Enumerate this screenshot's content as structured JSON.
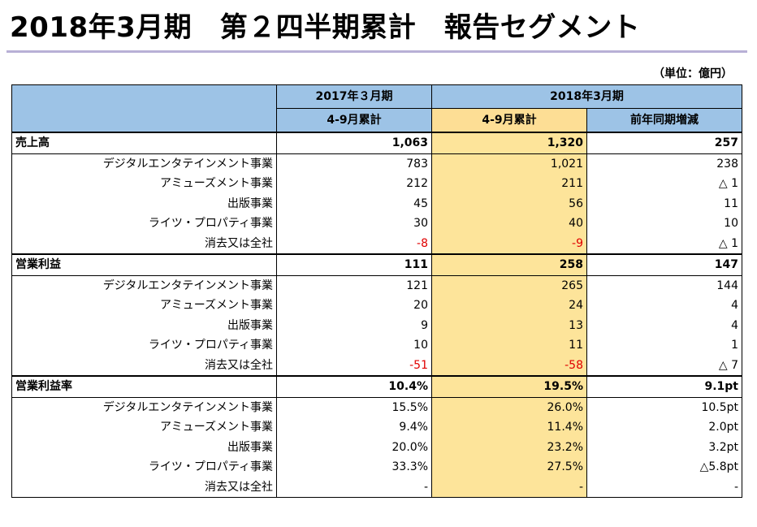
{
  "page": {
    "title": "2018年3月期　第２四半期累計　報告セグメント",
    "unit": "（単位：億円）"
  },
  "header": {
    "period_prev": "2017年３月期",
    "period_curr": "2018年3月期",
    "cum_prev": "4-9月累計",
    "cum_curr": "4-9月累計",
    "yoy": "前年同期増減"
  },
  "sections": [
    {
      "title": "売上高",
      "total": {
        "prev": "1,063",
        "curr": "1,320",
        "diff": "257"
      },
      "rows": [
        {
          "label": "デジタルエンタテインメント事業",
          "prev": "783",
          "curr": "1,021",
          "diff": "238"
        },
        {
          "label": "アミューズメント事業",
          "prev": "212",
          "curr": "211",
          "diff": "△ 1"
        },
        {
          "label": "出版事業",
          "prev": "45",
          "curr": "56",
          "diff": "11"
        },
        {
          "label": "ライツ・プロパティ事業",
          "prev": "30",
          "curr": "40",
          "diff": "10"
        },
        {
          "label": "消去又は全社",
          "prev": "-8",
          "curr": "-9",
          "diff": "△ 1"
        }
      ]
    },
    {
      "title": "営業利益",
      "total": {
        "prev": "111",
        "curr": "258",
        "diff": "147"
      },
      "rows": [
        {
          "label": "デジタルエンタテインメント事業",
          "prev": "121",
          "curr": "265",
          "diff": "144"
        },
        {
          "label": "アミューズメント事業",
          "prev": "20",
          "curr": "24",
          "diff": "4"
        },
        {
          "label": "出版事業",
          "prev": "9",
          "curr": "13",
          "diff": "4"
        },
        {
          "label": "ライツ・プロパティ事業",
          "prev": "10",
          "curr": "11",
          "diff": "1"
        },
        {
          "label": "消去又は全社",
          "prev": "-51",
          "curr": "-58",
          "diff": "△ 7"
        }
      ]
    },
    {
      "title": "営業利益率",
      "total": {
        "prev": "10.4%",
        "curr": "19.5%",
        "diff": "9.1pt"
      },
      "rows": [
        {
          "label": "デジタルエンタテインメント事業",
          "prev": "15.5%",
          "curr": "26.0%",
          "diff": "10.5pt"
        },
        {
          "label": "アミューズメント事業",
          "prev": "9.4%",
          "curr": "11.4%",
          "diff": "2.0pt"
        },
        {
          "label": "出版事業",
          "prev": "20.0%",
          "curr": "23.2%",
          "diff": "3.2pt"
        },
        {
          "label": "ライツ・プロパティ事業",
          "prev": "33.3%",
          "curr": "27.5%",
          "diff": "△5.8pt"
        },
        {
          "label": "消去又は全社",
          "prev": "-",
          "curr": "-",
          "diff": "-"
        }
      ]
    }
  ],
  "colors": {
    "header_blue": "#9dc3e6",
    "highlight_yellow": "#fde49a",
    "negative_red": "#e00000",
    "title_rule": "#b8b0d6"
  }
}
